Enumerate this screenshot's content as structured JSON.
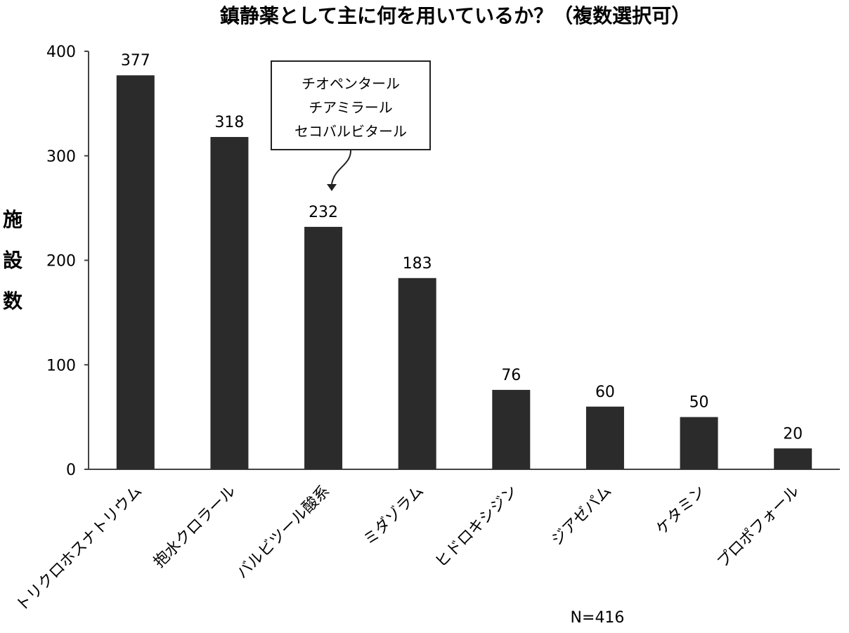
{
  "chart_data": {
    "type": "bar",
    "title": "鎮静薬として主に何を用いているか？（複数選択可）",
    "ylabel": "施設数",
    "xlabel": "",
    "categories": [
      "トリクロホスナトリウム",
      "抱水クロラール",
      "バルビツール酸系",
      "ミダゾラム",
      "ヒドロキシジン",
      "ジアゼパム",
      "ケタミン",
      "プロポフォール"
    ],
    "values": [
      377,
      318,
      232,
      183,
      76,
      60,
      50,
      20
    ],
    "data_labels": [
      "377",
      "318",
      "232",
      "183",
      "76",
      "60",
      "50",
      "20"
    ],
    "ylim": [
      0,
      400
    ],
    "yticks": [
      0,
      100,
      200,
      300,
      400
    ],
    "ytick_labels": [
      "0",
      "100",
      "200",
      "300",
      "400"
    ],
    "grid": false,
    "legend": "none",
    "bar_color": "#2b2b2b",
    "annotation": {
      "lines": [
        "チオペンタール",
        "チアミラール",
        "セコバルビタール"
      ],
      "target_category": "バルビツール酸系"
    },
    "note": "N=416"
  }
}
